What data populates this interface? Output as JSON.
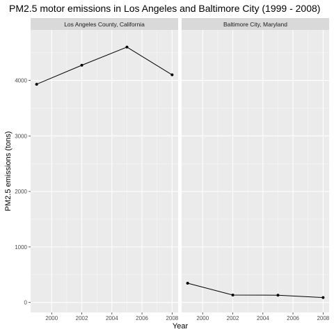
{
  "chart_data": {
    "type": "line",
    "title": "PM2.5 motor emissions in Los Angeles and Baltimore City (1999 - 2008)",
    "xlabel": "Year",
    "ylabel": "PM2.5 emissions (tons)",
    "xlim": [
      1998.6,
      2008.4
    ],
    "ylim": [
      -180,
      4910
    ],
    "x_ticks": [
      2000,
      2002,
      2004,
      2006,
      2008
    ],
    "y_ticks": [
      0,
      1000,
      2000,
      3000,
      4000
    ],
    "grid": true,
    "panels": [
      {
        "strip_label": "Los Angeles County, California",
        "x": [
          1999,
          2002,
          2005,
          2008
        ],
        "y": [
          3931,
          4274,
          4601,
          4101
        ]
      },
      {
        "strip_label": "Baltimore City, Maryland",
        "x": [
          1999,
          2002,
          2005,
          2008
        ],
        "y": [
          347,
          134,
          130,
          88
        ]
      }
    ]
  }
}
